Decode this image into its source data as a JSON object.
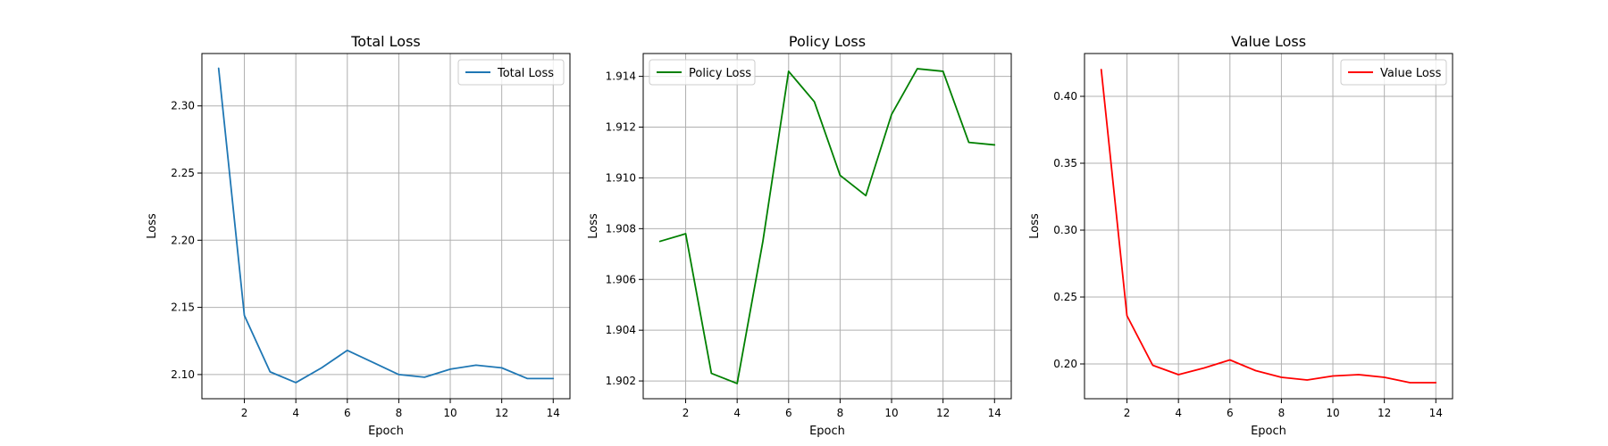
{
  "chart_data": [
    {
      "type": "line",
      "title": "Total Loss",
      "xlabel": "Epoch",
      "ylabel": "Loss",
      "x": [
        1,
        2,
        3,
        4,
        5,
        6,
        7,
        8,
        9,
        10,
        11,
        12,
        13,
        14
      ],
      "xlim": [
        0.35,
        14.65
      ],
      "ylim": [
        2.082,
        2.339
      ],
      "xticks": [
        2,
        4,
        6,
        8,
        10,
        12,
        14
      ],
      "yticks": [
        2.1,
        2.15,
        2.2,
        2.25,
        2.3
      ],
      "ytick_labels": [
        "2.10",
        "2.15",
        "2.20",
        "2.25",
        "2.30"
      ],
      "grid": true,
      "legend_position": "upper right",
      "series": [
        {
          "name": "Total Loss",
          "color": "#1f77b4",
          "values": [
            2.328,
            2.144,
            2.102,
            2.094,
            2.105,
            2.118,
            2.109,
            2.1,
            2.098,
            2.104,
            2.107,
            2.105,
            2.097,
            2.097
          ]
        }
      ]
    },
    {
      "type": "line",
      "title": "Policy Loss",
      "xlabel": "Epoch",
      "ylabel": "Loss",
      "x": [
        1,
        2,
        3,
        4,
        5,
        6,
        7,
        8,
        9,
        10,
        11,
        12,
        13,
        14
      ],
      "xlim": [
        0.35,
        14.65
      ],
      "ylim": [
        1.9013,
        1.9149
      ],
      "xticks": [
        2,
        4,
        6,
        8,
        10,
        12,
        14
      ],
      "yticks": [
        1.902,
        1.904,
        1.906,
        1.908,
        1.91,
        1.912,
        1.914
      ],
      "ytick_labels": [
        "1.902",
        "1.904",
        "1.906",
        "1.908",
        "1.910",
        "1.912",
        "1.914"
      ],
      "grid": true,
      "legend_position": "upper left",
      "series": [
        {
          "name": "Policy Loss",
          "color": "#008000",
          "values": [
            1.9075,
            1.9078,
            1.9023,
            1.9019,
            1.9075,
            1.9142,
            1.913,
            1.9101,
            1.9093,
            1.9125,
            1.9143,
            1.9142,
            1.9114,
            1.9113
          ]
        }
      ]
    },
    {
      "type": "line",
      "title": "Value Loss",
      "xlabel": "Epoch",
      "ylabel": "Loss",
      "x": [
        1,
        2,
        3,
        4,
        5,
        6,
        7,
        8,
        9,
        10,
        11,
        12,
        13,
        14
      ],
      "xlim": [
        0.35,
        14.65
      ],
      "ylim": [
        0.174,
        0.432
      ],
      "xticks": [
        2,
        4,
        6,
        8,
        10,
        12,
        14
      ],
      "yticks": [
        0.2,
        0.25,
        0.3,
        0.35,
        0.4
      ],
      "ytick_labels": [
        "0.20",
        "0.25",
        "0.30",
        "0.35",
        "0.40"
      ],
      "grid": true,
      "legend_position": "upper right",
      "series": [
        {
          "name": "Value Loss",
          "color": "#ff0000",
          "values": [
            0.42,
            0.236,
            0.199,
            0.192,
            0.197,
            0.203,
            0.195,
            0.19,
            0.188,
            0.191,
            0.192,
            0.19,
            0.186,
            0.186
          ]
        }
      ]
    }
  ]
}
